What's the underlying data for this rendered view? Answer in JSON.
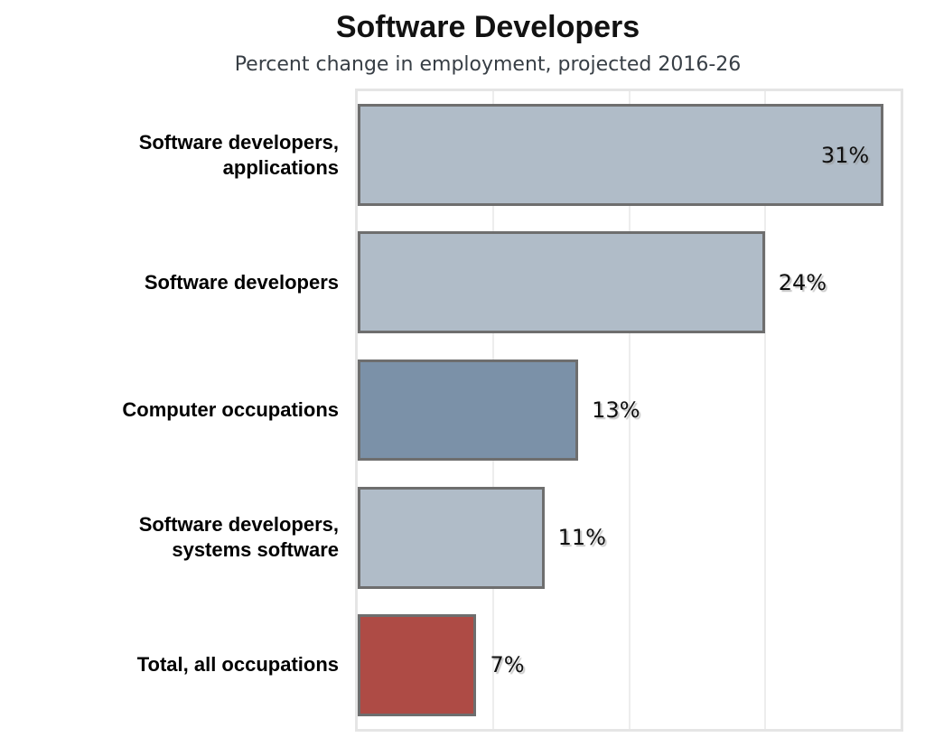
{
  "header": {
    "title": "Software Developers",
    "subtitle": "Percent change in employment, projected 2016-26"
  },
  "chart_data": {
    "type": "bar",
    "orientation": "horizontal",
    "title": "Software Developers",
    "subtitle": "Percent change in employment, projected 2016-26",
    "categories": [
      "Software developers, applications",
      "Software developers",
      "Computer occupations",
      "Software developers, systems software",
      "Total, all occupations"
    ],
    "category_lines": [
      [
        "Software developers,",
        "applications"
      ],
      [
        "Software developers"
      ],
      [
        "Computer occupations"
      ],
      [
        "Software developers,",
        "systems software"
      ],
      [
        "Total, all occupations"
      ]
    ],
    "values": [
      31,
      24,
      13,
      11,
      7
    ],
    "value_labels": [
      "31%",
      "24%",
      "13%",
      "11%",
      "7%"
    ],
    "xlabel": "",
    "ylabel": "",
    "xlim": [
      0,
      32
    ],
    "x_ticks": [
      8,
      16,
      24,
      32
    ],
    "grid": true,
    "legend": "none",
    "colors": {
      "bar_light": "#b0bcc8",
      "bar_dark": "#7b91a8",
      "bar_red": "#ae4b45",
      "bar_border": "#6e6e6e",
      "gridline": "#ededed",
      "plot_border": "#e5e5e5",
      "title_text": "#121212",
      "subtitle_text": "#373e45"
    },
    "bar_colors": [
      "#b0bcc8",
      "#b0bcc8",
      "#7b91a8",
      "#b0bcc8",
      "#ae4b45"
    ]
  }
}
